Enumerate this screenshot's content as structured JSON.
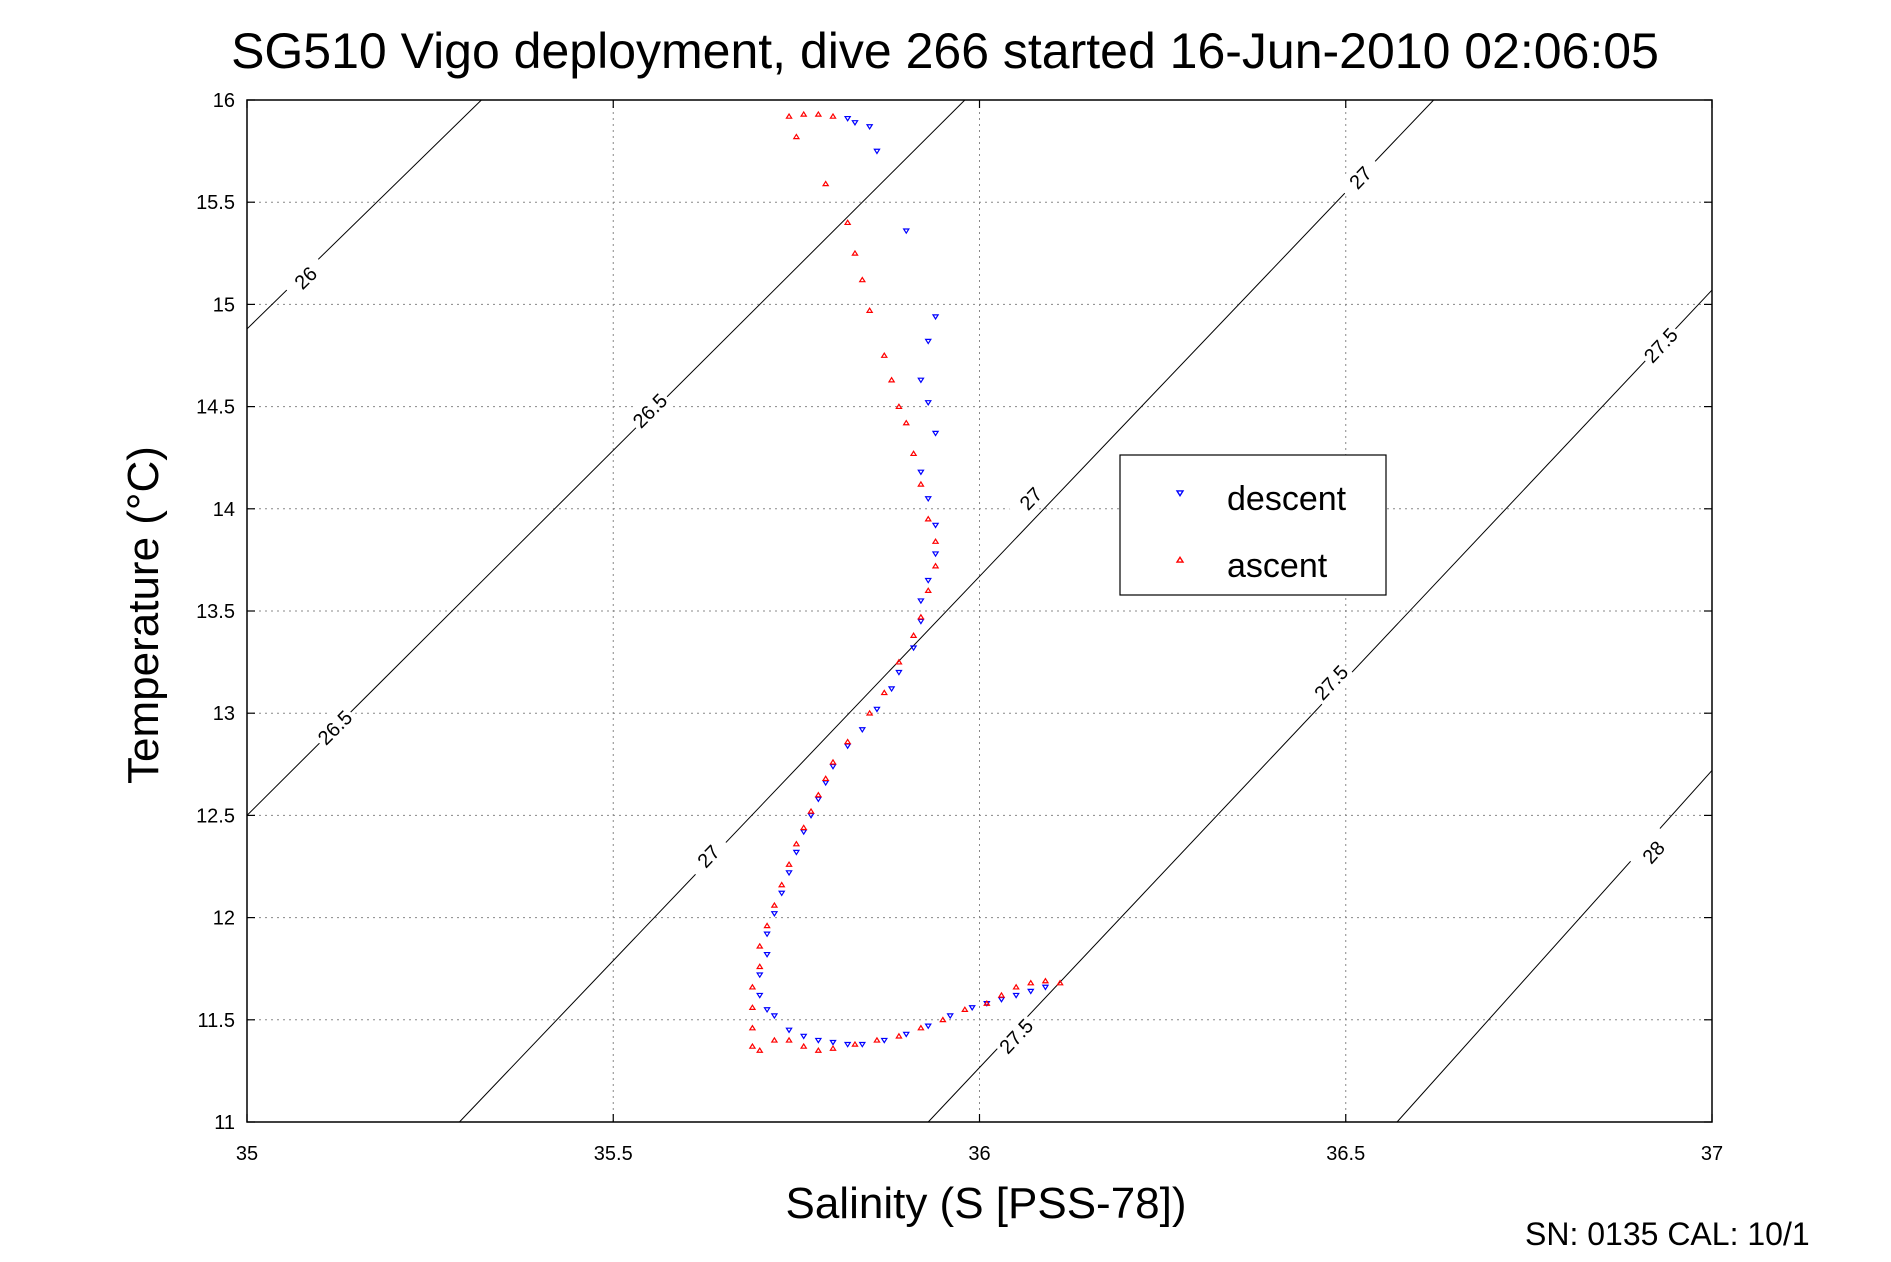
{
  "chart_data": {
    "type": "scatter",
    "title": "SG510 Vigo deployment, dive 266 started 16-Jun-2010 02:06:05",
    "xlabel": "Salinity (S [PSS-78])",
    "ylabel": "Temperature (°C)",
    "xlim": [
      35,
      37
    ],
    "ylim": [
      11,
      16
    ],
    "xticks": [
      "35",
      "35.5",
      "36",
      "36.5",
      "37"
    ],
    "yticks": [
      "11",
      "11.5",
      "12",
      "12.5",
      "13",
      "13.5",
      "14",
      "14.5",
      "15",
      "15.5",
      "16"
    ],
    "grid": true,
    "legend_position": "center-right",
    "footer": "SN: 0135  CAL: 10/1",
    "density_contours": [
      {
        "label": "26",
        "points": [
          [
            35.0,
            14.88
          ],
          [
            35.32,
            16.0
          ]
        ],
        "label_pos": [
          35.08,
          15.13
        ]
      },
      {
        "label": "26.5",
        "points": [
          [
            35.0,
            12.5
          ],
          [
            35.98,
            16.0
          ]
        ],
        "label_pos": [
          35.12,
          12.93
        ],
        "label_pos2": [
          35.55,
          14.48
        ]
      },
      {
        "label": "27",
        "points": [
          [
            35.29,
            11.0
          ],
          [
            36.62,
            16.0
          ]
        ],
        "label_pos": [
          35.63,
          12.3
        ],
        "label_pos2": [
          36.07,
          14.05
        ],
        "label_pos3": [
          36.52,
          15.62
        ]
      },
      {
        "label": "27.5",
        "points": [
          [
            35.93,
            11.0
          ],
          [
            37.0,
            15.07
          ]
        ],
        "label_pos": [
          36.05,
          11.42
        ],
        "label_pos2": [
          36.48,
          13.15
        ],
        "label_pos3": [
          36.93,
          14.8
        ]
      },
      {
        "label": "28",
        "points": [
          [
            36.57,
            11.0
          ],
          [
            37.0,
            12.72
          ]
        ],
        "label_pos": [
          36.92,
          12.32
        ]
      }
    ],
    "series": [
      {
        "name": "descent",
        "color": "#0000ff",
        "marker": "triangle-down",
        "points": [
          [
            35.82,
            15.91
          ],
          [
            35.83,
            15.89
          ],
          [
            35.85,
            15.87
          ],
          [
            35.86,
            15.75
          ],
          [
            35.9,
            15.36
          ],
          [
            35.94,
            14.94
          ],
          [
            35.93,
            14.82
          ],
          [
            35.92,
            14.63
          ],
          [
            35.93,
            14.52
          ],
          [
            35.94,
            14.37
          ],
          [
            35.92,
            14.18
          ],
          [
            35.93,
            14.05
          ],
          [
            35.94,
            13.92
          ],
          [
            35.94,
            13.78
          ],
          [
            35.93,
            13.65
          ],
          [
            35.92,
            13.55
          ],
          [
            35.92,
            13.45
          ],
          [
            35.91,
            13.32
          ],
          [
            35.89,
            13.2
          ],
          [
            35.88,
            13.12
          ],
          [
            35.86,
            13.02
          ],
          [
            35.84,
            12.92
          ],
          [
            35.82,
            12.84
          ],
          [
            35.8,
            12.74
          ],
          [
            35.79,
            12.66
          ],
          [
            35.78,
            12.58
          ],
          [
            35.77,
            12.5
          ],
          [
            35.76,
            12.42
          ],
          [
            35.75,
            12.32
          ],
          [
            35.74,
            12.22
          ],
          [
            35.73,
            12.12
          ],
          [
            35.72,
            12.02
          ],
          [
            35.71,
            11.92
          ],
          [
            35.71,
            11.82
          ],
          [
            35.7,
            11.72
          ],
          [
            35.7,
            11.62
          ],
          [
            35.71,
            11.55
          ],
          [
            35.72,
            11.52
          ],
          [
            35.74,
            11.45
          ],
          [
            35.76,
            11.42
          ],
          [
            35.78,
            11.4
          ],
          [
            35.8,
            11.39
          ],
          [
            35.82,
            11.38
          ],
          [
            35.84,
            11.38
          ],
          [
            35.87,
            11.4
          ],
          [
            35.9,
            11.43
          ],
          [
            35.93,
            11.47
          ],
          [
            35.96,
            11.52
          ],
          [
            35.99,
            11.56
          ],
          [
            36.01,
            11.58
          ],
          [
            36.03,
            11.6
          ],
          [
            36.05,
            11.62
          ],
          [
            36.07,
            11.64
          ],
          [
            36.09,
            11.66
          ]
        ]
      },
      {
        "name": "ascent",
        "color": "#ff0000",
        "marker": "triangle-up",
        "points": [
          [
            35.74,
            15.92
          ],
          [
            35.76,
            15.93
          ],
          [
            35.78,
            15.93
          ],
          [
            35.8,
            15.92
          ],
          [
            35.75,
            15.82
          ],
          [
            35.79,
            15.59
          ],
          [
            35.82,
            15.4
          ],
          [
            35.83,
            15.25
          ],
          [
            35.84,
            15.12
          ],
          [
            35.85,
            14.97
          ],
          [
            35.87,
            14.75
          ],
          [
            35.88,
            14.63
          ],
          [
            35.89,
            14.5
          ],
          [
            35.9,
            14.42
          ],
          [
            35.91,
            14.27
          ],
          [
            35.92,
            14.12
          ],
          [
            35.93,
            13.95
          ],
          [
            35.94,
            13.84
          ],
          [
            35.94,
            13.72
          ],
          [
            35.93,
            13.6
          ],
          [
            35.92,
            13.47
          ],
          [
            35.91,
            13.38
          ],
          [
            35.89,
            13.25
          ],
          [
            35.87,
            13.1
          ],
          [
            35.85,
            13.0
          ],
          [
            35.82,
            12.86
          ],
          [
            35.8,
            12.76
          ],
          [
            35.79,
            12.68
          ],
          [
            35.78,
            12.6
          ],
          [
            35.77,
            12.52
          ],
          [
            35.76,
            12.44
          ],
          [
            35.75,
            12.36
          ],
          [
            35.74,
            12.26
          ],
          [
            35.73,
            12.16
          ],
          [
            35.72,
            12.06
          ],
          [
            35.71,
            11.96
          ],
          [
            35.7,
            11.86
          ],
          [
            35.7,
            11.76
          ],
          [
            35.69,
            11.66
          ],
          [
            35.69,
            11.56
          ],
          [
            35.69,
            11.46
          ],
          [
            35.69,
            11.37
          ],
          [
            35.7,
            11.35
          ],
          [
            35.72,
            11.4
          ],
          [
            35.74,
            11.4
          ],
          [
            35.76,
            11.37
          ],
          [
            35.78,
            11.35
          ],
          [
            35.8,
            11.36
          ],
          [
            35.83,
            11.38
          ],
          [
            35.86,
            11.4
          ],
          [
            35.89,
            11.42
          ],
          [
            35.92,
            11.46
          ],
          [
            35.95,
            11.5
          ],
          [
            35.98,
            11.55
          ],
          [
            36.01,
            11.58
          ],
          [
            36.03,
            11.62
          ],
          [
            36.05,
            11.66
          ],
          [
            36.07,
            11.68
          ],
          [
            36.09,
            11.69
          ],
          [
            36.11,
            11.68
          ]
        ]
      }
    ]
  }
}
